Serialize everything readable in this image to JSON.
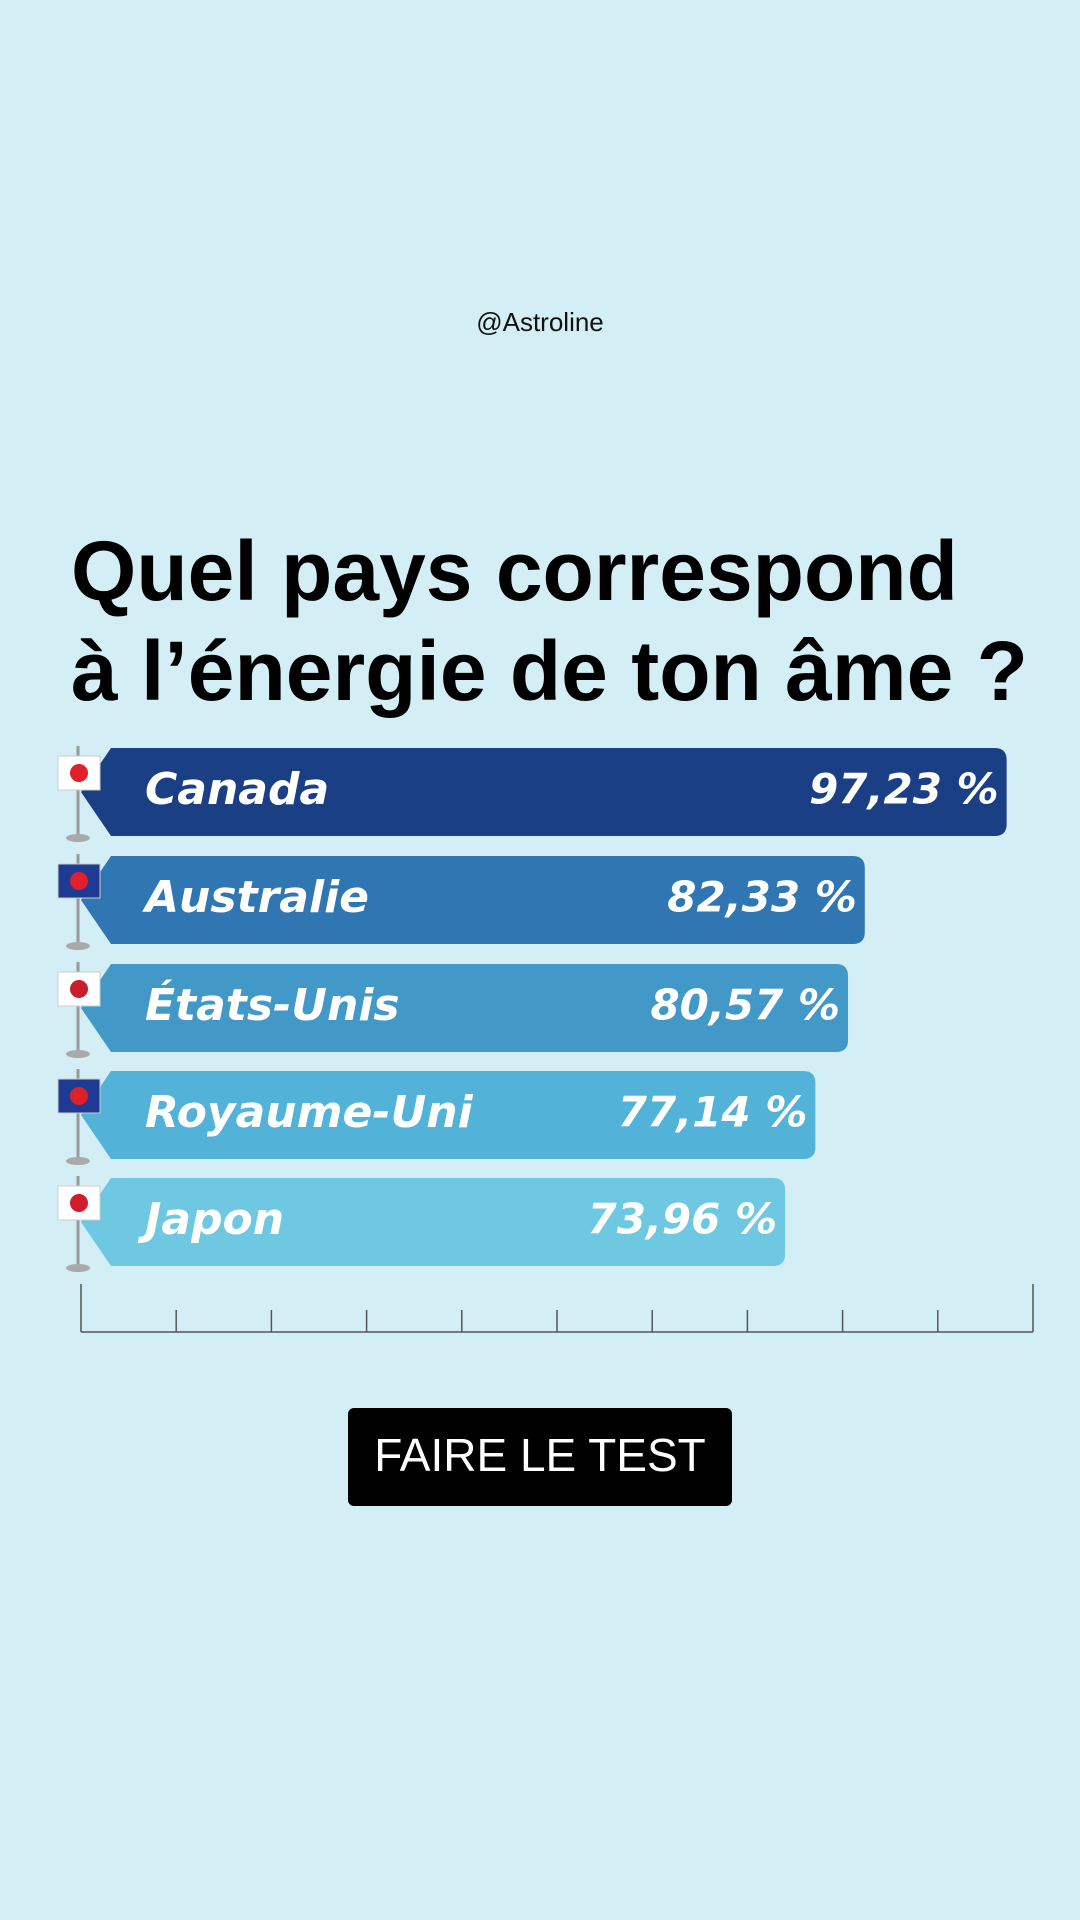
{
  "handle": "@Astroline",
  "button": "FAIRE LE TEST",
  "chart_data": {
    "type": "bar",
    "orientation": "horizontal",
    "title": [
      "Quel pays correspond",
      "à l’énergie de ton âme ?"
    ],
    "categories": [
      "Canada",
      "Australie",
      "États-Unis",
      "Royaume-Uni",
      "Japon"
    ],
    "values": [
      97.23,
      82.33,
      80.57,
      77.14,
      73.96
    ],
    "value_labels": [
      "97,23 %",
      "82,33 %",
      "80,57 %",
      "77,14 %",
      "73,96 %"
    ],
    "colors": [
      "#1a3f84",
      "#2f76b2",
      "#4299c8",
      "#52b2d8",
      "#6fc8e2"
    ],
    "xlim": [
      0,
      100
    ],
    "xticks": [
      0,
      10,
      20,
      30,
      40,
      50,
      60,
      70,
      80,
      90,
      100
    ]
  }
}
